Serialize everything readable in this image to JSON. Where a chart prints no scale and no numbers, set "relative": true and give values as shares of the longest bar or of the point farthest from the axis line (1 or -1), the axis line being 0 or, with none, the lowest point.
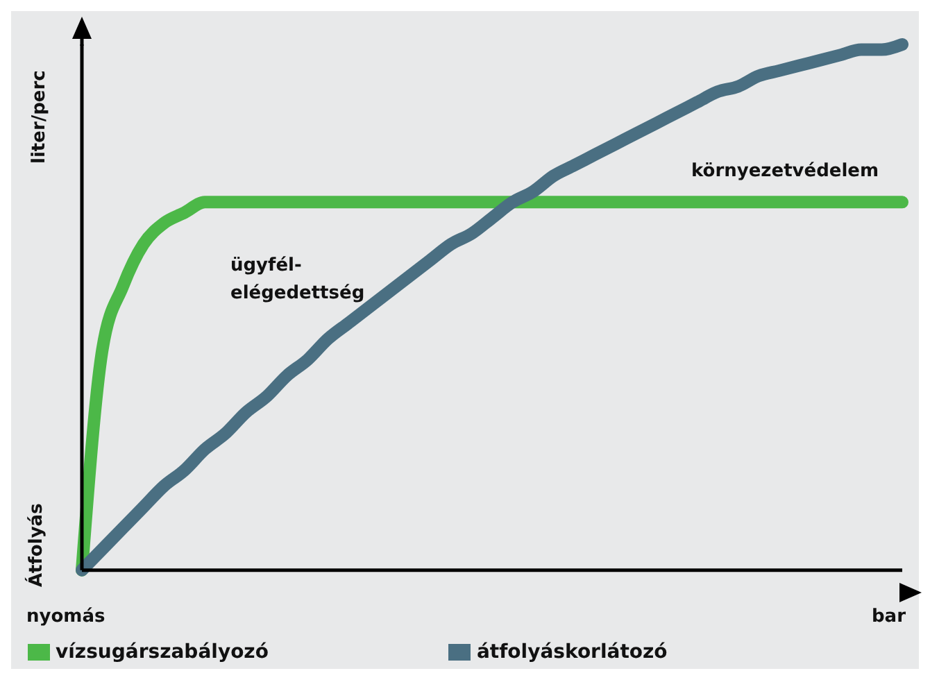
{
  "chart_data": {
    "type": "line",
    "relative": true,
    "xlabel": "nyomás",
    "ylabel": "Átfolyás",
    "categories": [
      null,
      null,
      null,
      null,
      null,
      null,
      null,
      null,
      null,
      null,
      null,
      null,
      null,
      null,
      null,
      null,
      null,
      null,
      null,
      null,
      null,
      null,
      null,
      null,
      null,
      null,
      null,
      null,
      null,
      null,
      null,
      null,
      null,
      null,
      null,
      null,
      null,
      null,
      null,
      null,
      null
    ],
    "series": [
      {
        "name": "vízsugárszabályozó",
        "color": "#4cb848",
        "values": [
          0,
          0.42,
          0.54,
          0.62,
          0.66,
          0.68,
          0.7,
          0.7,
          0.7,
          0.7,
          0.7,
          0.7,
          0.7,
          0.7,
          0.7,
          0.7,
          0.7,
          0.7,
          0.7,
          0.7,
          0.7,
          0.7,
          0.7,
          0.7,
          0.7,
          0.7,
          0.7,
          0.7,
          0.7,
          0.7,
          0.7,
          0.7,
          0.7,
          0.7,
          0.7,
          0.7,
          0.7,
          0.7,
          0.7,
          0.7,
          0.7
        ]
      },
      {
        "name": "átfolyáskorlátozó",
        "color": "#4a6f82",
        "values": [
          0,
          0.04,
          0.08,
          0.12,
          0.16,
          0.19,
          0.23,
          0.26,
          0.3,
          0.33,
          0.37,
          0.4,
          0.44,
          0.47,
          0.5,
          0.53,
          0.56,
          0.59,
          0.62,
          0.64,
          0.67,
          0.7,
          0.72,
          0.75,
          0.77,
          0.79,
          0.81,
          0.83,
          0.85,
          0.87,
          0.89,
          0.91,
          0.92,
          0.94,
          0.95,
          0.96,
          0.97,
          0.98,
          0.99,
          0.99,
          1
        ]
      }
    ],
    "annotations": [
      "liter/perc",
      "bar",
      "környezetvédelem",
      "ügyfél-\nelégedettség"
    ],
    "legend": "bottom",
    "grid": false,
    "marker": "none",
    "line_style": "solid"
  }
}
